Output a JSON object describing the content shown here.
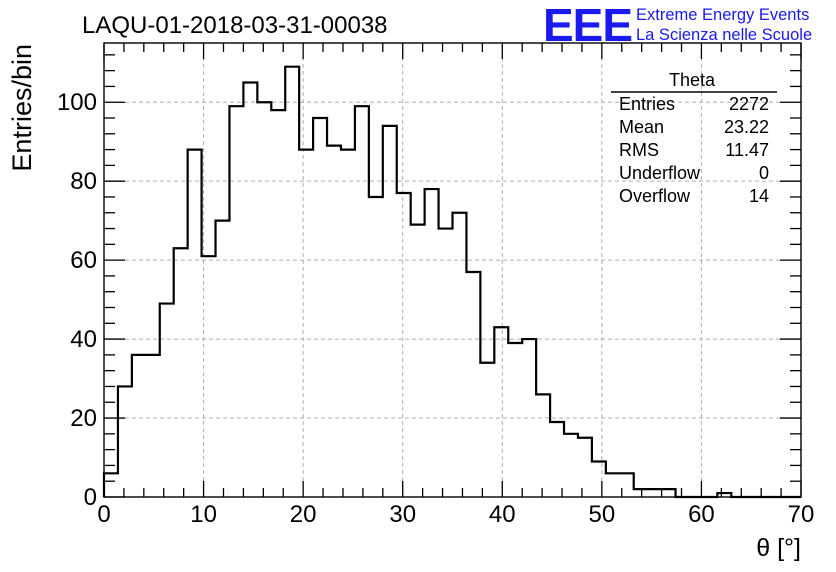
{
  "colors": {
    "histogram": "#000000",
    "grid": "#b0b0b0",
    "logo": "#1a1aee"
  },
  "logo": {
    "mark": "EEE",
    "line1": "Extreme Energy Events",
    "line2": "La Scienza nelle Scuole"
  },
  "stats": {
    "title": "Theta",
    "rows": [
      {
        "label": "Entries",
        "value": "2272"
      },
      {
        "label": "Mean",
        "value": "23.22"
      },
      {
        "label": "RMS",
        "value": "11.47"
      },
      {
        "label": "Underflow",
        "value": "0"
      },
      {
        "label": "Overflow",
        "value": "14"
      }
    ]
  },
  "chart_data": {
    "type": "bar",
    "title": "LAQU-01-2018-03-31-00038",
    "xlabel": "θ [°]",
    "ylabel": "Entries/bin",
    "xlim": [
      0,
      70
    ],
    "ylim": [
      0,
      115
    ],
    "bin_width": 1.4,
    "x_ticks": [
      0,
      10,
      20,
      30,
      40,
      50,
      60,
      70
    ],
    "y_ticks": [
      0,
      20,
      40,
      60,
      80,
      100
    ],
    "grid": true,
    "values": [
      6,
      28,
      36,
      36,
      49,
      63,
      88,
      61,
      70,
      99,
      105,
      100,
      98,
      109,
      88,
      96,
      89,
      88,
      99,
      76,
      94,
      77,
      69,
      78,
      68,
      72,
      57,
      34,
      43,
      39,
      40,
      26,
      19,
      16,
      15,
      9,
      6,
      6,
      2,
      2,
      2,
      0,
      0,
      0,
      1,
      0,
      0,
      0,
      0,
      0
    ]
  }
}
